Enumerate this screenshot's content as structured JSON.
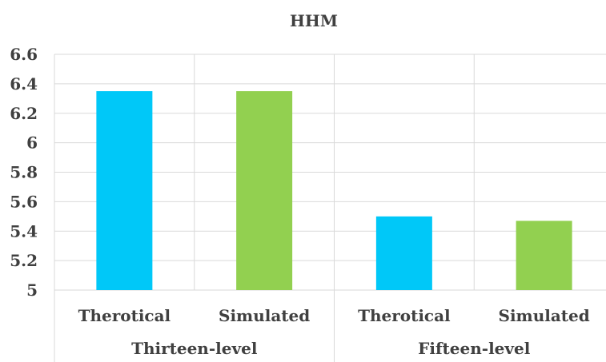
{
  "chart_data": {
    "type": "bar",
    "title": "HHM",
    "xlabel": "",
    "ylabel": "",
    "ylim": [
      5,
      6.6
    ],
    "yticks": [
      "5",
      "5.2",
      "5.4",
      "5.6",
      "5.8",
      "6",
      "6.2",
      "6.4",
      "6.6"
    ],
    "grid": true,
    "groups": [
      "Thirteen-level",
      "Fifteen-level"
    ],
    "categories": [
      "Therotical",
      "Simulated",
      "Therotical",
      "Simulated"
    ],
    "values": [
      6.35,
      6.35,
      5.5,
      5.47
    ],
    "bar_colors": [
      "#00C8F8",
      "#92D050",
      "#00C8F8",
      "#92D050"
    ]
  }
}
